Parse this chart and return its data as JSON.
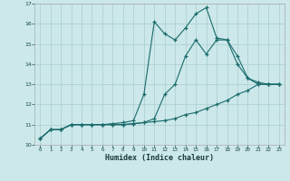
{
  "xlabel": "Humidex (Indice chaleur)",
  "bg_color": "#cce8ea",
  "grid_color": "#aacccc",
  "line_color": "#1a6b6b",
  "xlim": [
    -0.5,
    23.5
  ],
  "ylim": [
    10,
    17
  ],
  "xticks": [
    0,
    1,
    2,
    3,
    4,
    5,
    6,
    7,
    8,
    9,
    10,
    11,
    12,
    13,
    14,
    15,
    16,
    17,
    18,
    19,
    20,
    21,
    22,
    23
  ],
  "yticks": [
    10,
    11,
    12,
    13,
    14,
    15,
    16,
    17
  ],
  "series": [
    {
      "x": [
        0,
        1,
        2,
        3,
        4,
        5,
        6,
        7,
        8,
        9,
        10,
        11,
        12,
        13,
        14,
        15,
        16,
        17,
        18,
        19,
        20,
        21,
        22,
        23
      ],
      "y": [
        10.3,
        10.75,
        10.75,
        11.0,
        11.0,
        11.0,
        11.0,
        11.0,
        11.0,
        11.05,
        11.1,
        11.15,
        11.2,
        11.3,
        11.5,
        11.6,
        11.8,
        12.0,
        12.2,
        12.5,
        12.7,
        13.0,
        13.0,
        13.0
      ]
    },
    {
      "x": [
        0,
        1,
        2,
        3,
        4,
        5,
        6,
        7,
        8,
        9,
        10,
        11,
        12,
        13,
        14,
        15,
        16,
        17,
        18,
        19,
        20,
        21,
        22,
        23
      ],
      "y": [
        10.3,
        10.75,
        10.75,
        11.0,
        11.0,
        11.0,
        11.0,
        11.0,
        11.0,
        11.05,
        11.1,
        11.3,
        12.5,
        13.0,
        14.4,
        15.2,
        14.5,
        15.2,
        15.2,
        14.4,
        13.3,
        13.0,
        13.0,
        13.0
      ]
    },
    {
      "x": [
        0,
        1,
        2,
        3,
        4,
        5,
        6,
        7,
        8,
        9,
        10,
        11,
        12,
        13,
        14,
        15,
        16,
        17,
        18,
        19,
        20,
        21,
        22,
        23
      ],
      "y": [
        10.3,
        10.75,
        10.75,
        11.0,
        11.0,
        11.0,
        11.0,
        11.05,
        11.1,
        11.2,
        12.5,
        16.1,
        15.5,
        15.2,
        15.8,
        16.5,
        16.8,
        15.3,
        15.2,
        14.0,
        13.3,
        13.1,
        13.0,
        13.0
      ]
    }
  ]
}
